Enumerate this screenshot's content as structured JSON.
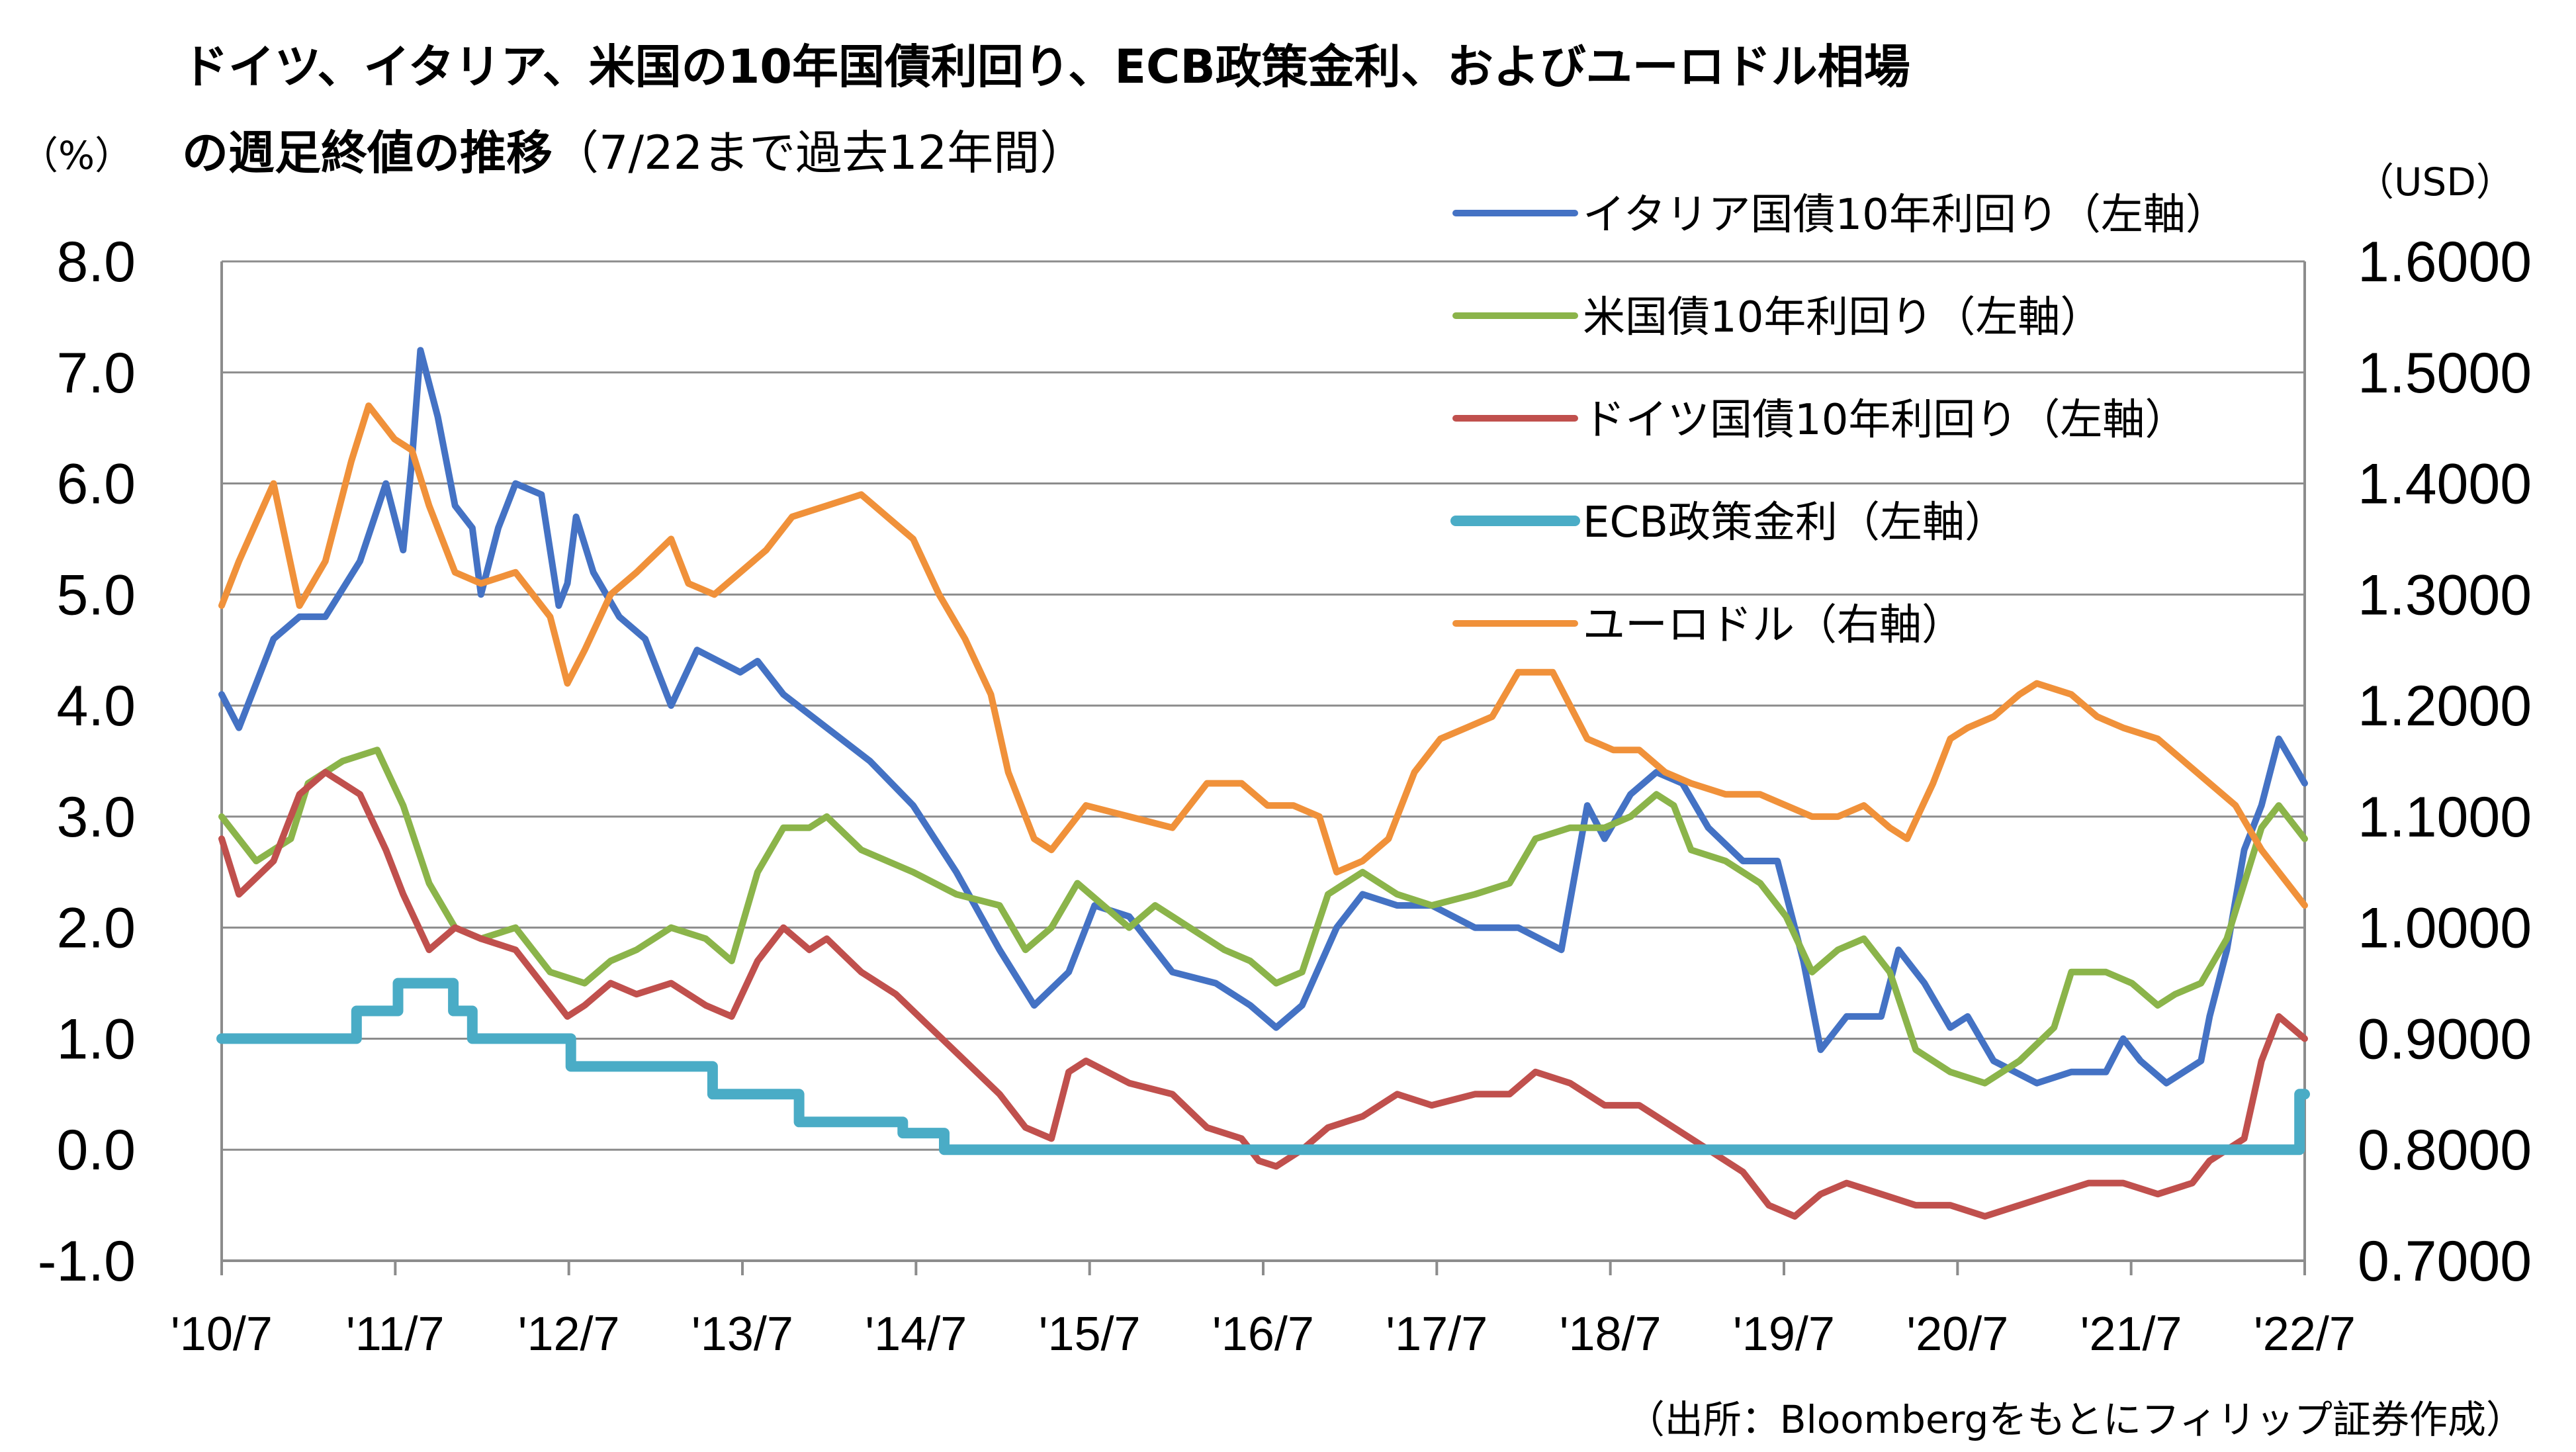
{
  "title_line1": "ドイツ、イタリア、米国の10年国債利回り、ECB政策金利、およびユーロドル相場",
  "title_line2_bold": "の週足終値の推移",
  "title_line2_normal": "（7/22まで過去12年間）",
  "left_unit": "（%）",
  "right_unit": "（USD）",
  "source": "（出所：Bloombergをもとにフィリップ証券作成）",
  "chart_data": {
    "type": "line",
    "x_ticks": [
      "'10/7",
      "'11/7",
      "'12/7",
      "'13/7",
      "'14/7",
      "'15/7",
      "'16/7",
      "'17/7",
      "'18/7",
      "'19/7",
      "'20/7",
      "'21/7",
      "'22/7"
    ],
    "y_left_ticks": [
      "8.0",
      "7.0",
      "6.0",
      "5.0",
      "4.0",
      "3.0",
      "2.0",
      "1.0",
      "0.0",
      "-1.0"
    ],
    "y_right_ticks": [
      "1.6000",
      "1.5000",
      "1.4000",
      "1.3000",
      "1.2000",
      "1.1000",
      "1.0000",
      "0.9000",
      "0.8000",
      "0.7000"
    ],
    "y_left_range": [
      -1.0,
      8.0
    ],
    "y_right_range": [
      0.7,
      1.6
    ],
    "x_range": [
      2010.5,
      2022.55
    ],
    "grid": "horizontal",
    "legend_position": "top-right",
    "series": [
      {
        "name": "イタリア国債10年利回り（左軸）",
        "axis": "left",
        "color": "#4472c4",
        "x": [
          2010.5,
          2010.6,
          2010.8,
          2010.95,
          2011.1,
          2011.3,
          2011.45,
          2011.55,
          2011.6,
          2011.65,
          2011.75,
          2011.85,
          2011.95,
          2012.0,
          2012.1,
          2012.2,
          2012.35,
          2012.45,
          2012.5,
          2012.55,
          2012.65,
          2012.8,
          2012.95,
          2013.1,
          2013.25,
          2013.5,
          2013.6,
          2013.75,
          2014.0,
          2014.25,
          2014.5,
          2014.75,
          2015.0,
          2015.2,
          2015.4,
          2015.55,
          2015.75,
          2016.0,
          2016.25,
          2016.45,
          2016.6,
          2016.75,
          2016.95,
          2017.1,
          2017.3,
          2017.5,
          2017.75,
          2018.0,
          2018.25,
          2018.4,
          2018.5,
          2018.65,
          2018.8,
          2018.95,
          2019.1,
          2019.3,
          2019.5,
          2019.65,
          2019.75,
          2019.9,
          2020.1,
          2020.2,
          2020.35,
          2020.5,
          2020.6,
          2020.75,
          2021.0,
          2021.2,
          2021.4,
          2021.5,
          2021.6,
          2021.75,
          2021.95,
          2022.0,
          2022.1,
          2022.2,
          2022.3,
          2022.4,
          2022.55
        ],
        "y": [
          4.1,
          3.8,
          4.6,
          4.8,
          4.8,
          5.3,
          6.0,
          5.4,
          6.2,
          7.2,
          6.6,
          5.8,
          5.6,
          5.0,
          5.6,
          6.0,
          5.9,
          4.9,
          5.1,
          5.7,
          5.2,
          4.8,
          4.6,
          4.0,
          4.5,
          4.3,
          4.4,
          4.1,
          3.8,
          3.5,
          3.1,
          2.5,
          1.8,
          1.3,
          1.6,
          2.2,
          2.1,
          1.6,
          1.5,
          1.3,
          1.1,
          1.3,
          2.0,
          2.3,
          2.2,
          2.2,
          2.0,
          2.0,
          1.8,
          3.1,
          2.8,
          3.2,
          3.4,
          3.3,
          2.9,
          2.6,
          2.6,
          1.7,
          0.9,
          1.2,
          1.2,
          1.8,
          1.5,
          1.1,
          1.2,
          0.8,
          0.6,
          0.7,
          0.7,
          1.0,
          0.8,
          0.6,
          0.8,
          1.2,
          1.8,
          2.7,
          3.1,
          3.7,
          3.3
        ]
      },
      {
        "name": "米国債10年利回り（左軸）",
        "axis": "left",
        "color": "#8bb44a",
        "x": [
          2010.5,
          2010.7,
          2010.9,
          2011.0,
          2011.2,
          2011.4,
          2011.55,
          2011.7,
          2011.85,
          2012.0,
          2012.2,
          2012.4,
          2012.6,
          2012.75,
          2012.9,
          2013.1,
          2013.3,
          2013.45,
          2013.6,
          2013.75,
          2013.9,
          2014.0,
          2014.2,
          2014.5,
          2014.75,
          2015.0,
          2015.15,
          2015.3,
          2015.45,
          2015.6,
          2015.75,
          2015.9,
          2016.1,
          2016.3,
          2016.45,
          2016.6,
          2016.75,
          2016.9,
          2017.1,
          2017.3,
          2017.5,
          2017.75,
          2017.95,
          2018.1,
          2018.3,
          2018.5,
          2018.65,
          2018.8,
          2018.9,
          2019.0,
          2019.2,
          2019.4,
          2019.55,
          2019.7,
          2019.85,
          2020.0,
          2020.15,
          2020.3,
          2020.5,
          2020.7,
          2020.9,
          2021.1,
          2021.2,
          2021.4,
          2021.55,
          2021.7,
          2021.8,
          2021.95,
          2022.1,
          2022.2,
          2022.3,
          2022.4,
          2022.55
        ],
        "y": [
          3.0,
          2.6,
          2.8,
          3.3,
          3.5,
          3.6,
          3.1,
          2.4,
          2.0,
          1.9,
          2.0,
          1.6,
          1.5,
          1.7,
          1.8,
          2.0,
          1.9,
          1.7,
          2.5,
          2.9,
          2.9,
          3.0,
          2.7,
          2.5,
          2.3,
          2.2,
          1.8,
          2.0,
          2.4,
          2.2,
          2.0,
          2.2,
          2.0,
          1.8,
          1.7,
          1.5,
          1.6,
          2.3,
          2.5,
          2.3,
          2.2,
          2.3,
          2.4,
          2.8,
          2.9,
          2.9,
          3.0,
          3.2,
          3.1,
          2.7,
          2.6,
          2.4,
          2.1,
          1.6,
          1.8,
          1.9,
          1.6,
          0.9,
          0.7,
          0.6,
          0.8,
          1.1,
          1.6,
          1.6,
          1.5,
          1.3,
          1.4,
          1.5,
          1.9,
          2.4,
          2.9,
          3.1,
          2.8
        ]
      },
      {
        "name": "ドイツ国債10年利回り（左軸）",
        "axis": "left",
        "color": "#c0504d",
        "x": [
          2010.5,
          2010.6,
          2010.8,
          2010.95,
          2011.1,
          2011.3,
          2011.45,
          2011.55,
          2011.7,
          2011.85,
          2012.0,
          2012.2,
          2012.4,
          2012.5,
          2012.6,
          2012.75,
          2012.9,
          2013.1,
          2013.3,
          2013.45,
          2013.6,
          2013.75,
          2013.9,
          2014.0,
          2014.2,
          2014.4,
          2014.6,
          2014.8,
          2015.0,
          2015.15,
          2015.3,
          2015.4,
          2015.5,
          2015.75,
          2016.0,
          2016.2,
          2016.4,
          2016.5,
          2016.6,
          2016.75,
          2016.9,
          2017.1,
          2017.3,
          2017.5,
          2017.75,
          2017.95,
          2018.1,
          2018.3,
          2018.5,
          2018.7,
          2018.9,
          2019.1,
          2019.3,
          2019.45,
          2019.6,
          2019.75,
          2019.9,
          2020.1,
          2020.3,
          2020.5,
          2020.7,
          2020.9,
          2021.1,
          2021.3,
          2021.5,
          2021.7,
          2021.9,
          2022.0,
          2022.2,
          2022.3,
          2022.4,
          2022.55
        ],
        "y": [
          2.8,
          2.3,
          2.6,
          3.2,
          3.4,
          3.2,
          2.7,
          2.3,
          1.8,
          2.0,
          1.9,
          1.8,
          1.4,
          1.2,
          1.3,
          1.5,
          1.4,
          1.5,
          1.3,
          1.2,
          1.7,
          2.0,
          1.8,
          1.9,
          1.6,
          1.4,
          1.1,
          0.8,
          0.5,
          0.2,
          0.1,
          0.7,
          0.8,
          0.6,
          0.5,
          0.2,
          0.1,
          -0.1,
          -0.15,
          0.0,
          0.2,
          0.3,
          0.5,
          0.4,
          0.5,
          0.5,
          0.7,
          0.6,
          0.4,
          0.4,
          0.2,
          0.0,
          -0.2,
          -0.5,
          -0.6,
          -0.4,
          -0.3,
          -0.4,
          -0.5,
          -0.5,
          -0.6,
          -0.5,
          -0.4,
          -0.3,
          -0.3,
          -0.4,
          -0.3,
          -0.1,
          0.1,
          0.8,
          1.2,
          1.0
        ]
      },
      {
        "name": "ECB政策金利（左軸）",
        "axis": "left",
        "color": "#4aacc6",
        "x": [
          2010.5,
          2011.28,
          2011.28,
          2011.52,
          2011.52,
          2011.84,
          2011.84,
          2011.95,
          2011.95,
          2012.52,
          2012.52,
          2013.34,
          2013.34,
          2013.84,
          2013.84,
          2014.44,
          2014.44,
          2014.68,
          2014.68,
          2022.52,
          2022.52,
          2022.55
        ],
        "y": [
          1.0,
          1.0,
          1.25,
          1.25,
          1.5,
          1.5,
          1.25,
          1.25,
          1.0,
          1.0,
          0.75,
          0.75,
          0.5,
          0.5,
          0.25,
          0.25,
          0.15,
          0.15,
          0.0,
          0.0,
          0.5,
          0.5
        ]
      },
      {
        "name": "ユーロドル（右軸）",
        "axis": "right",
        "color": "#f0913a",
        "x": [
          2010.5,
          2010.6,
          2010.8,
          2010.95,
          2011.1,
          2011.25,
          2011.35,
          2011.5,
          2011.6,
          2011.7,
          2011.85,
          2012.0,
          2012.2,
          2012.4,
          2012.5,
          2012.6,
          2012.75,
          2012.9,
          2013.1,
          2013.2,
          2013.35,
          2013.5,
          2013.65,
          2013.8,
          2014.0,
          2014.2,
          2014.35,
          2014.5,
          2014.65,
          2014.8,
          2014.95,
          2015.05,
          2015.2,
          2015.3,
          2015.5,
          2015.75,
          2016.0,
          2016.2,
          2016.4,
          2016.55,
          2016.7,
          2016.85,
          2016.95,
          2017.1,
          2017.25,
          2017.4,
          2017.55,
          2017.7,
          2017.85,
          2018.0,
          2018.2,
          2018.4,
          2018.55,
          2018.7,
          2018.85,
          2019.0,
          2019.2,
          2019.4,
          2019.55,
          2019.7,
          2019.85,
          2020.0,
          2020.15,
          2020.25,
          2020.4,
          2020.5,
          2020.6,
          2020.75,
          2020.9,
          2021.0,
          2021.2,
          2021.35,
          2021.5,
          2021.7,
          2021.85,
          2022.0,
          2022.15,
          2022.3,
          2022.45,
          2022.55
        ],
        "y": [
          1.29,
          1.33,
          1.4,
          1.29,
          1.33,
          1.42,
          1.47,
          1.44,
          1.43,
          1.38,
          1.32,
          1.31,
          1.32,
          1.28,
          1.22,
          1.25,
          1.3,
          1.32,
          1.35,
          1.31,
          1.3,
          1.32,
          1.34,
          1.37,
          1.38,
          1.39,
          1.37,
          1.35,
          1.3,
          1.26,
          1.21,
          1.14,
          1.08,
          1.07,
          1.11,
          1.1,
          1.09,
          1.13,
          1.13,
          1.11,
          1.11,
          1.1,
          1.05,
          1.06,
          1.08,
          1.14,
          1.17,
          1.18,
          1.19,
          1.23,
          1.23,
          1.17,
          1.16,
          1.16,
          1.14,
          1.13,
          1.12,
          1.12,
          1.11,
          1.1,
          1.1,
          1.11,
          1.09,
          1.08,
          1.13,
          1.17,
          1.18,
          1.19,
          1.21,
          1.22,
          1.21,
          1.19,
          1.18,
          1.17,
          1.15,
          1.13,
          1.11,
          1.07,
          1.04,
          1.02
        ]
      }
    ]
  }
}
